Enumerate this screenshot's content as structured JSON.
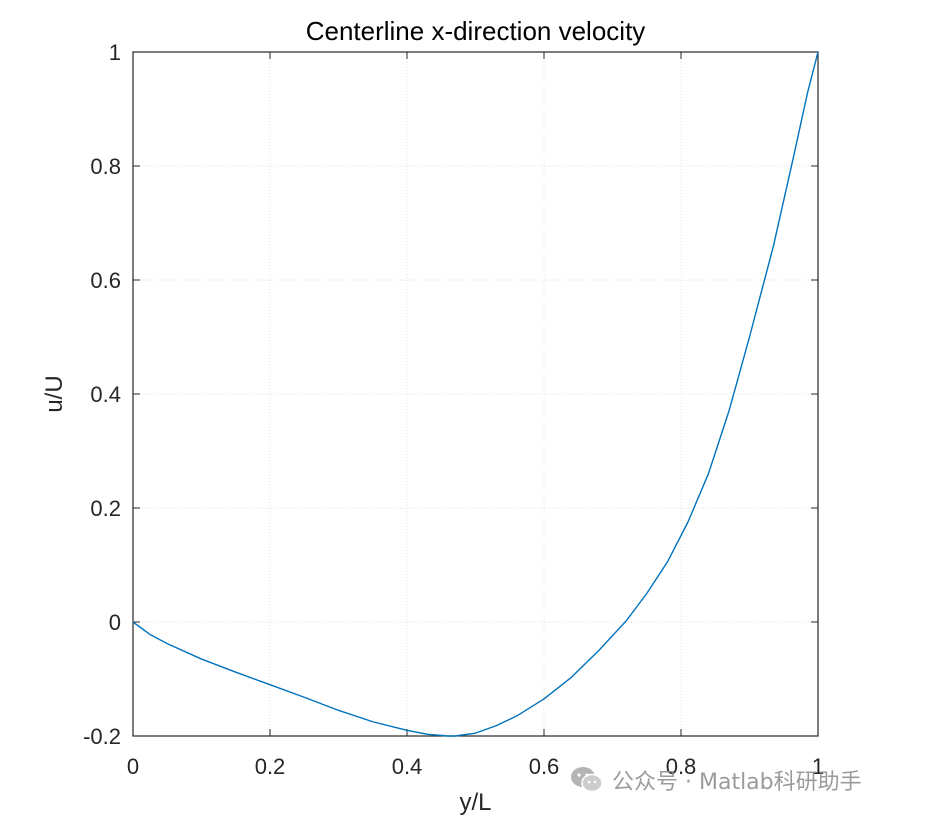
{
  "chart_data": {
    "type": "line",
    "title": "Centerline x-direction velocity",
    "xlabel": "y/L",
    "ylabel": "u/U",
    "xlim": [
      0,
      1
    ],
    "ylim": [
      -0.2,
      1
    ],
    "xticks": [
      0,
      0.2,
      0.4,
      0.6,
      0.8,
      1
    ],
    "xtick_labels": [
      "0",
      "0.2",
      "0.4",
      "0.6",
      "0.8",
      "1"
    ],
    "yticks": [
      -0.2,
      0,
      0.2,
      0.4,
      0.6,
      0.8,
      1
    ],
    "ytick_labels": [
      "-0.2",
      "0",
      "0.2",
      "0.4",
      "0.6",
      "0.8",
      "1"
    ],
    "grid": true,
    "series": [
      {
        "color": "#0072bd",
        "x": [
          0,
          0.025,
          0.05,
          0.1,
          0.15,
          0.2,
          0.25,
          0.3,
          0.35,
          0.4,
          0.43,
          0.46,
          0.47,
          0.5,
          0.53,
          0.56,
          0.6,
          0.64,
          0.68,
          0.72,
          0.75,
          0.78,
          0.81,
          0.84,
          0.87,
          0.9,
          0.935,
          0.965,
          0.985,
          1.0
        ],
        "y": [
          0,
          -0.022,
          -0.038,
          -0.065,
          -0.088,
          -0.11,
          -0.132,
          -0.155,
          -0.175,
          -0.19,
          -0.197,
          -0.2,
          -0.2,
          -0.195,
          -0.182,
          -0.165,
          -0.135,
          -0.097,
          -0.05,
          0.002,
          0.05,
          0.105,
          0.175,
          0.26,
          0.37,
          0.5,
          0.66,
          0.82,
          0.93,
          1.0
        ]
      }
    ]
  },
  "watermark": {
    "icon": "wechat-icon",
    "text": "公众号 · Matlab科研助手"
  }
}
